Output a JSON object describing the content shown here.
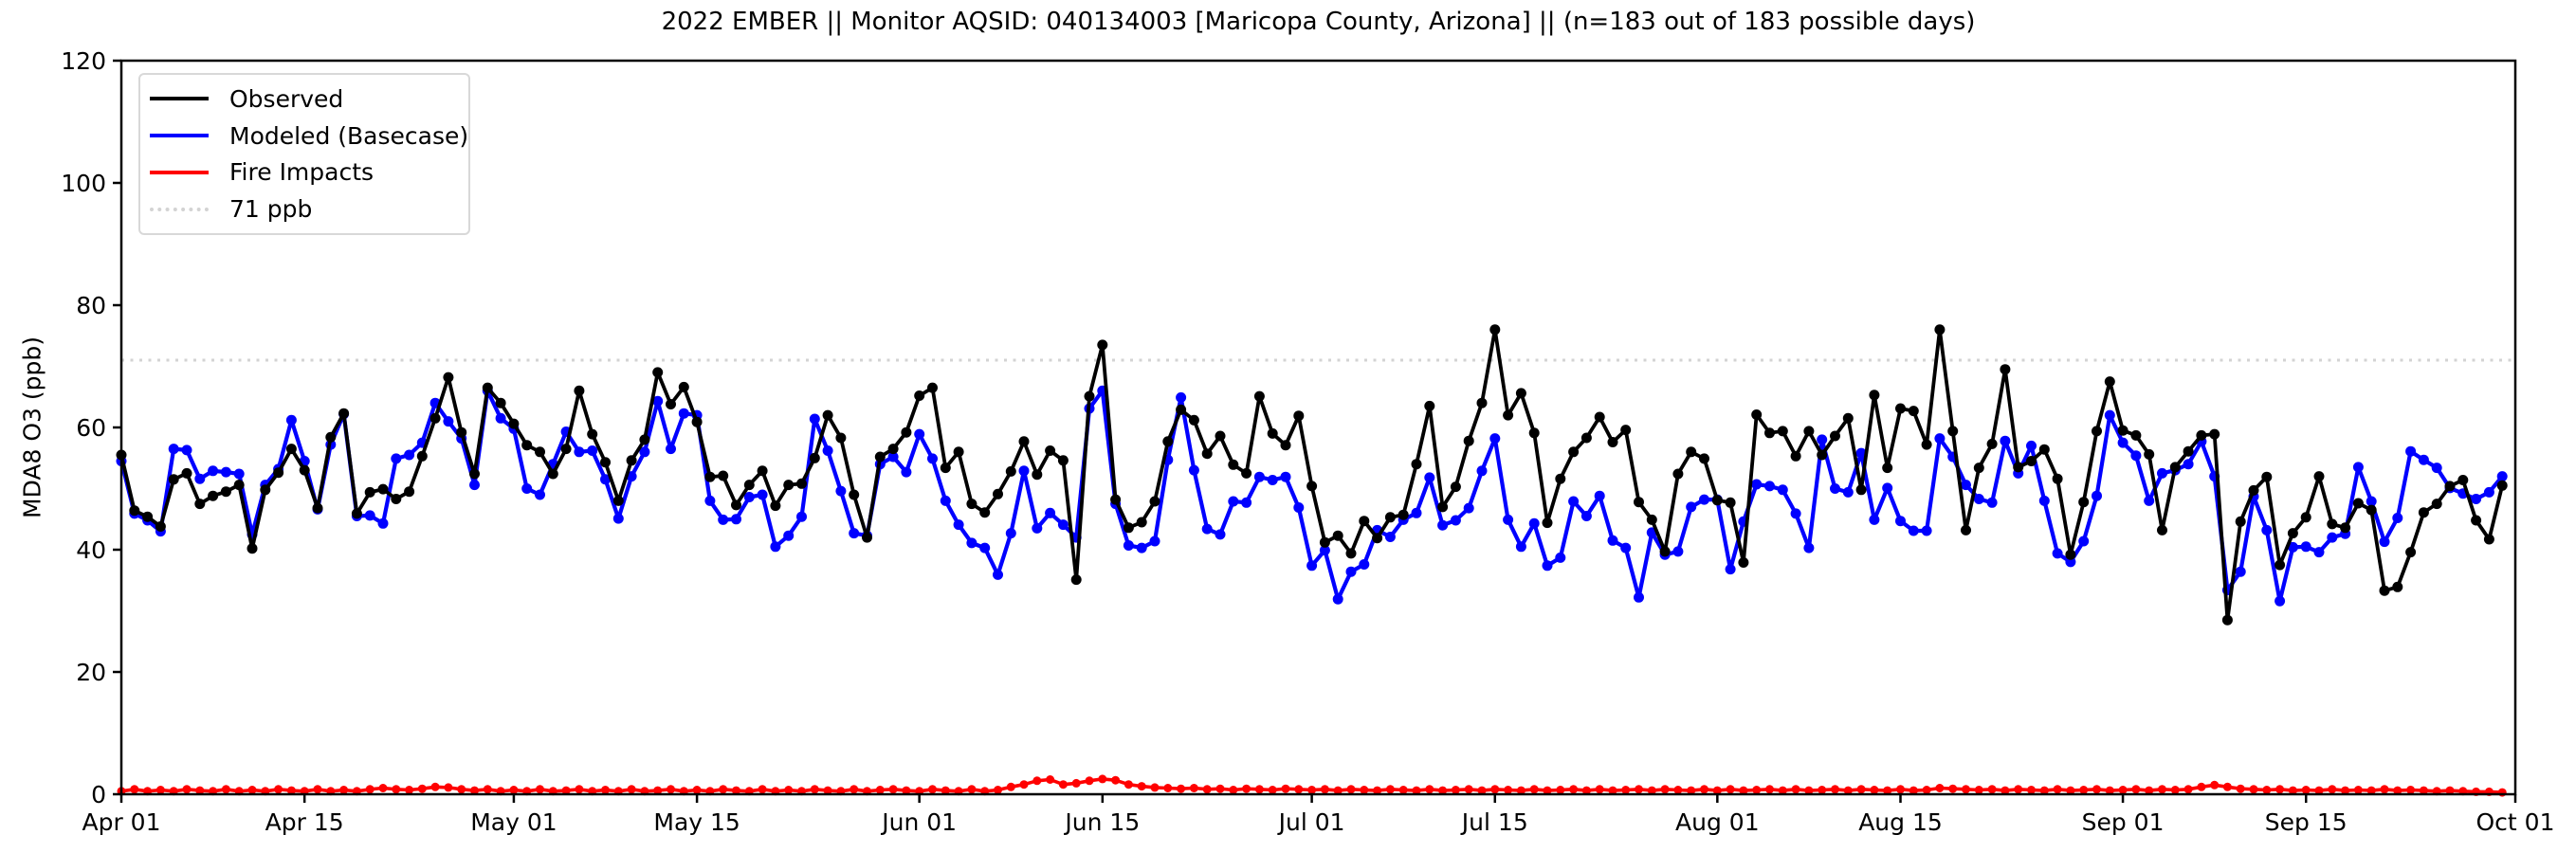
{
  "figure": {
    "title": "2022 EMBER || Monitor AQSID: 040134003 [Maricopa County, Arizona] || (n=183 out of 183 possible days)",
    "ylabel": "MDA8 O3 (ppb)"
  },
  "legend": [
    {
      "label": "Observed",
      "color": "#000000",
      "style": "solid"
    },
    {
      "label": "Modeled (Basecase)",
      "color": "#0000ff",
      "style": "solid"
    },
    {
      "label": "Fire Impacts",
      "color": "#ff0000",
      "style": "solid"
    },
    {
      "label": "71 ppb",
      "color": "#d3d3d3",
      "style": "dotted"
    }
  ],
  "chart_data": {
    "type": "line",
    "title": "2022 EMBER || Monitor AQSID: 040134003 [Maricopa County, Arizona] || (n=183 out of 183 possible days)",
    "xlabel": "",
    "ylabel": "MDA8 O3 (ppb)",
    "ylim": [
      0,
      120
    ],
    "yticks": [
      0,
      20,
      40,
      60,
      80,
      100,
      120
    ],
    "n_days": 183,
    "date_start": "Apr 01",
    "date_end": "Oct 01",
    "xtick_labels": [
      "Apr 01",
      "Apr 15",
      "May 01",
      "May 15",
      "Jun 01",
      "Jun 15",
      "Jul 01",
      "Jul 15",
      "Aug 01",
      "Aug 15",
      "Sep 01",
      "Sep 15",
      "Oct 01"
    ],
    "xtick_days": [
      0,
      14,
      30,
      44,
      61,
      75,
      91,
      105,
      122,
      136,
      153,
      167,
      183
    ],
    "grid": false,
    "legend_position": "upper left",
    "threshold": {
      "label": "71 ppb",
      "value": 71,
      "color": "#d3d3d3"
    },
    "series": [
      {
        "name": "Observed",
        "color": "#000000",
        "values": [
          55.5,
          46.4,
          45.4,
          43.8,
          51.5,
          52.5,
          47.5,
          48.8,
          49.5,
          50.6,
          40.2,
          49.8,
          52.6,
          56.5,
          53.0,
          46.8,
          58.4,
          62.3,
          45.9,
          49.4,
          49.9,
          48.3,
          49.5,
          55.3,
          61.5,
          68.2,
          59.2,
          52.4,
          66.5,
          64.0,
          60.6,
          57.1,
          56.0,
          52.4,
          56.5,
          66.0,
          58.9,
          54.3,
          48.0,
          54.6,
          58.0,
          69.0,
          63.8,
          66.6,
          60.9,
          51.9,
          52.1,
          47.3,
          50.6,
          52.9,
          47.2,
          50.6,
          50.8,
          55.0,
          62.0,
          58.3,
          49.0,
          42.0,
          55.2,
          56.5,
          59.2,
          65.2,
          66.5,
          53.4,
          56.0,
          47.5,
          46.1,
          49.1,
          52.8,
          57.7,
          52.3,
          56.2,
          54.6,
          35.1,
          65.1,
          73.5,
          48.2,
          43.6,
          44.5,
          47.9,
          57.7,
          62.9,
          61.2,
          55.7,
          58.6,
          53.9,
          52.5,
          65.1,
          59.0,
          57.1,
          61.9,
          50.4,
          41.2,
          42.3,
          39.4,
          44.7,
          41.9,
          45.3,
          45.7,
          54.0,
          63.5,
          47.0,
          50.3,
          57.8,
          64.0,
          76.0,
          62.0,
          65.6,
          59.1,
          44.4,
          51.6,
          56.0,
          58.3,
          61.7,
          57.6,
          59.6,
          47.8,
          44.9,
          39.7,
          52.4,
          56.0,
          54.9,
          48.1,
          47.7,
          37.9,
          62.1,
          59.1,
          59.4,
          55.3,
          59.4,
          55.5,
          58.6,
          61.5,
          49.8,
          65.3,
          53.4,
          63.1,
          62.7,
          57.2,
          76.0,
          59.4,
          43.2,
          53.4,
          57.3,
          69.5,
          53.5,
          54.5,
          56.4,
          51.6,
          39.2,
          47.8,
          59.4,
          67.5,
          59.5,
          58.7,
          55.6,
          43.2,
          53.5,
          56.1,
          58.7,
          58.9,
          28.5,
          44.6,
          49.7,
          51.9,
          37.5,
          42.7,
          45.3,
          52.0,
          44.2,
          43.6,
          47.6,
          46.5,
          33.3,
          33.9,
          39.6,
          46.1,
          47.5,
          50.4,
          51.4,
          44.8,
          41.7,
          50.5
        ]
      },
      {
        "name": "Modeled (Basecase)",
        "color": "#0000ff",
        "values": [
          54.5,
          45.9,
          44.8,
          43.0,
          56.5,
          56.3,
          51.6,
          52.9,
          52.7,
          52.4,
          42.5,
          50.6,
          53.2,
          61.2,
          54.5,
          46.6,
          57.2,
          62.2,
          45.5,
          45.6,
          44.3,
          54.9,
          55.5,
          57.5,
          64.0,
          61.0,
          58.2,
          50.6,
          66.0,
          61.5,
          59.8,
          50.0,
          49.0,
          54.0,
          59.3,
          56.0,
          56.2,
          51.5,
          45.1,
          52.0,
          56.0,
          64.3,
          56.5,
          62.3,
          62.0,
          48.0,
          44.9,
          45.0,
          48.6,
          49.0,
          40.5,
          42.3,
          45.4,
          61.4,
          56.2,
          49.6,
          42.7,
          42.3,
          54.0,
          55.2,
          52.7,
          58.9,
          54.9,
          48.0,
          44.1,
          41.1,
          40.3,
          35.9,
          42.7,
          52.9,
          43.5,
          46.0,
          44.1,
          42.0,
          63.1,
          66.0,
          47.5,
          40.7,
          40.3,
          41.4,
          54.7,
          64.9,
          53.0,
          43.4,
          42.5,
          47.9,
          47.7,
          51.9,
          51.4,
          51.9,
          46.9,
          37.4,
          39.9,
          31.9,
          36.4,
          37.6,
          43.2,
          42.1,
          44.9,
          46.0,
          51.8,
          44.0,
          44.8,
          46.8,
          52.9,
          58.2,
          44.9,
          40.5,
          44.3,
          37.4,
          38.7,
          47.9,
          45.5,
          48.8,
          41.5,
          40.3,
          32.2,
          42.8,
          39.2,
          39.7,
          47.0,
          48.2,
          48.2,
          36.8,
          44.6,
          50.7,
          50.4,
          49.8,
          45.9,
          40.3,
          58.0,
          50.0,
          49.4,
          55.8,
          44.9,
          50.1,
          44.7,
          43.1,
          43.1,
          58.2,
          55.2,
          50.6,
          48.3,
          47.7,
          57.8,
          52.5,
          57.0,
          48.0,
          39.4,
          38.0,
          41.4,
          48.8,
          62.0,
          57.5,
          55.4,
          48.0,
          52.5,
          53.0,
          54.0,
          57.7,
          52.0,
          33.4,
          36.4,
          48.7,
          43.2,
          31.6,
          40.4,
          40.5,
          39.6,
          42.0,
          42.6,
          53.5,
          47.9,
          41.3,
          45.2,
          56.1,
          54.7,
          53.4,
          50.1,
          49.2,
          48.3,
          49.4,
          52.0
        ]
      },
      {
        "name": "Fire Impacts",
        "color": "#ff0000",
        "values": [
          0.5,
          0.8,
          0.5,
          0.7,
          0.5,
          0.8,
          0.6,
          0.5,
          0.8,
          0.5,
          0.7,
          0.5,
          0.8,
          0.6,
          0.5,
          0.8,
          0.5,
          0.7,
          0.5,
          0.8,
          1.0,
          0.8,
          0.7,
          0.9,
          1.2,
          1.1,
          0.8,
          0.6,
          0.8,
          0.5,
          0.7,
          0.5,
          0.8,
          0.5,
          0.6,
          0.8,
          0.5,
          0.7,
          0.5,
          0.8,
          0.5,
          0.6,
          0.8,
          0.5,
          0.7,
          0.5,
          0.8,
          0.6,
          0.5,
          0.8,
          0.5,
          0.7,
          0.5,
          0.8,
          0.6,
          0.5,
          0.8,
          0.5,
          0.7,
          0.8,
          0.6,
          0.5,
          0.8,
          0.6,
          0.5,
          0.8,
          0.5,
          0.7,
          1.2,
          1.6,
          2.2,
          2.4,
          1.6,
          1.8,
          2.2,
          2.5,
          2.3,
          1.6,
          1.3,
          1.1,
          1.0,
          0.9,
          1.0,
          0.8,
          0.9,
          0.7,
          0.9,
          0.8,
          0.7,
          0.9,
          0.8,
          0.7,
          0.8,
          0.6,
          0.8,
          0.7,
          0.6,
          0.8,
          0.7,
          0.6,
          0.8,
          0.6,
          0.7,
          0.8,
          0.6,
          0.8,
          0.7,
          0.6,
          0.8,
          0.6,
          0.7,
          0.8,
          0.6,
          0.8,
          0.6,
          0.7,
          0.8,
          0.6,
          0.8,
          0.7,
          0.6,
          0.8,
          0.6,
          0.8,
          0.6,
          0.7,
          0.8,
          0.6,
          0.8,
          0.6,
          0.7,
          0.8,
          0.6,
          0.8,
          0.7,
          0.6,
          0.8,
          0.6,
          0.7,
          1.0,
          0.9,
          0.8,
          0.7,
          0.8,
          0.6,
          0.8,
          0.7,
          0.6,
          0.8,
          0.6,
          0.7,
          0.8,
          0.6,
          0.7,
          0.8,
          0.6,
          0.8,
          0.7,
          0.8,
          1.2,
          1.5,
          1.2,
          0.9,
          0.8,
          0.7,
          0.8,
          0.6,
          0.7,
          0.6,
          0.8,
          0.6,
          0.7,
          0.6,
          0.8,
          0.6,
          0.7,
          0.6,
          0.5,
          0.6,
          0.5,
          0.4,
          0.4,
          0.3
        ]
      }
    ]
  }
}
